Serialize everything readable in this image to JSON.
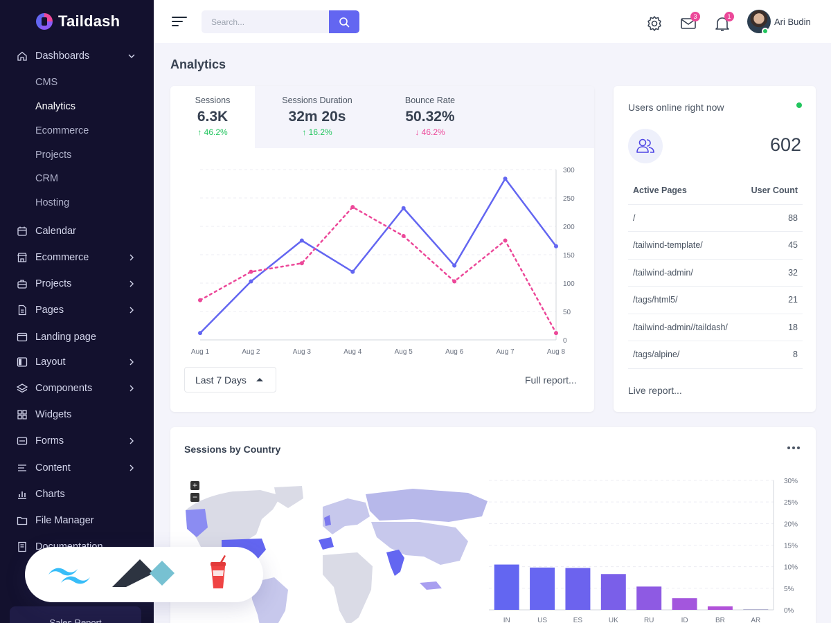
{
  "app": {
    "name": "Taildash"
  },
  "sidebar": {
    "dashboards": {
      "label": "Dashboards",
      "subitems": [
        "CMS",
        "Analytics",
        "Ecommerce",
        "Projects",
        "CRM",
        "Hosting"
      ]
    },
    "items": [
      {
        "label": "Calendar",
        "icon": "calendar-icon"
      },
      {
        "label": "Ecommerce",
        "icon": "store-icon"
      },
      {
        "label": "Projects",
        "icon": "briefcase-icon"
      },
      {
        "label": "Pages",
        "icon": "document-icon"
      },
      {
        "label": "Landing page",
        "icon": "browser-icon"
      },
      {
        "label": "Layout",
        "icon": "layout-icon"
      },
      {
        "label": "Components",
        "icon": "layers-icon"
      },
      {
        "label": "Widgets",
        "icon": "grid-icon"
      },
      {
        "label": "Forms",
        "icon": "form-icon"
      },
      {
        "label": "Content",
        "icon": "text-icon"
      },
      {
        "label": "Charts",
        "icon": "bar-chart-icon"
      },
      {
        "label": "File Manager",
        "icon": "folder-icon"
      },
      {
        "label": "Documentation",
        "icon": "book-icon"
      }
    ],
    "sales_report": "Sales Report"
  },
  "topbar": {
    "search_placeholder": "Search...",
    "messages_count": "3",
    "notifications_count": "1",
    "user_name": "Ari Budin"
  },
  "page": {
    "title": "Analytics"
  },
  "stats": [
    {
      "label": "Sessions",
      "value": "6.3K",
      "change": "46.2%",
      "direction": "up"
    },
    {
      "label": "Sessions Duration",
      "value": "32m 20s",
      "change": "16.2%",
      "direction": "up"
    },
    {
      "label": "Bounce Rate",
      "value": "50.32%",
      "change": "46.2%",
      "direction": "down"
    }
  ],
  "analytics": {
    "range": "Last 7 Days",
    "full_report": "Full report..."
  },
  "chart_data": [
    {
      "type": "line",
      "x": [
        "Aug 1",
        "Aug 2",
        "Aug 3",
        "Aug 4",
        "Aug 5",
        "Aug 6",
        "Aug 7",
        "Aug 8"
      ],
      "series": [
        {
          "values": [
            12,
            103,
            175,
            120,
            232,
            131,
            284,
            165
          ],
          "color": "#6366f1",
          "style": "solid"
        },
        {
          "values": [
            70,
            120,
            135,
            234,
            183,
            103,
            175,
            12
          ],
          "color": "#ec4899",
          "style": "dashed"
        }
      ],
      "yticks": [
        "0",
        "50",
        "100",
        "150",
        "200",
        "250",
        "300"
      ],
      "ylim": [
        0,
        300
      ],
      "axis_position": "right",
      "grid": true
    },
    {
      "type": "bar",
      "categories": [
        "IN",
        "US",
        "ES",
        "UK",
        "RU",
        "ID",
        "BR",
        "AR"
      ],
      "values": [
        10.5,
        9.8,
        9.7,
        8.3,
        5.4,
        2.7,
        0.8,
        0.1
      ],
      "yticks": [
        "0%",
        "5%",
        "10%",
        "15%",
        "20%",
        "25%",
        "30%"
      ],
      "ylim": [
        0,
        30
      ],
      "colors": [
        "#6366f1",
        "#6766f1",
        "#6c63ee",
        "#7a5fe9",
        "#8e5ae3",
        "#a356dd",
        "#b152d9",
        "#8b8bb5"
      ],
      "axis_position": "right",
      "grid": true
    }
  ],
  "users_online": {
    "title": "Users online right now",
    "count": "602",
    "columns": [
      "Active Pages",
      "User Count"
    ],
    "rows": [
      {
        "page": "/",
        "count": "88"
      },
      {
        "page": "/tailwind-template/",
        "count": "45"
      },
      {
        "page": "/tailwind-admin/",
        "count": "32"
      },
      {
        "page": "/tags/html5/",
        "count": "21"
      },
      {
        "page": "/tailwind-admin//taildash/",
        "count": "18"
      },
      {
        "page": "/tags/alpine/",
        "count": "8"
      }
    ],
    "live_report": "Live report..."
  },
  "country": {
    "title": "Sessions by Country",
    "zoom_in": "+",
    "zoom_out": "−"
  }
}
